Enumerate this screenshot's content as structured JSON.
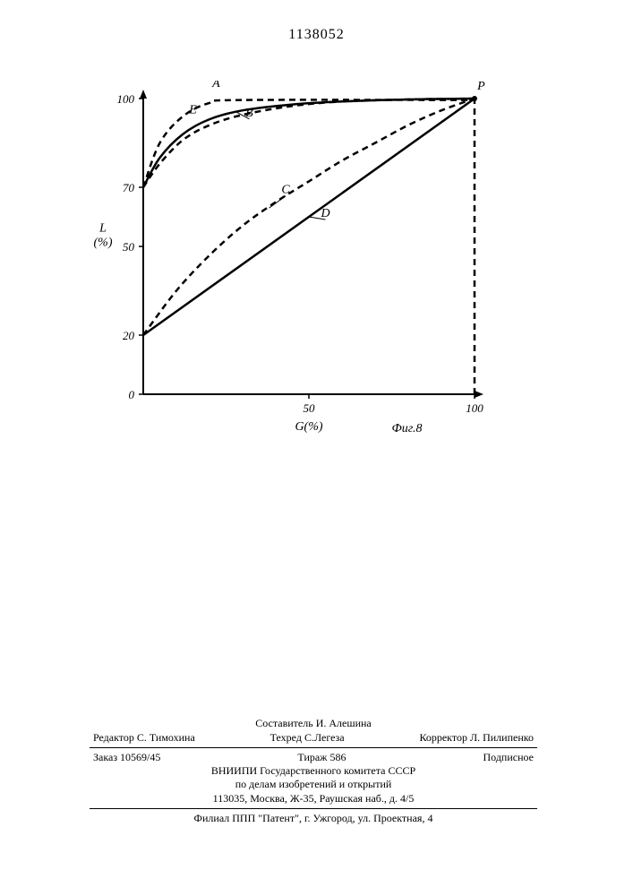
{
  "doc_number": "1138052",
  "chart": {
    "type": "line",
    "title": "",
    "figure_label": "Фиг.8",
    "xlabel": "G(%)",
    "ylabel_top": "L",
    "ylabel_bottom": "(%)",
    "xlim": [
      0,
      100
    ],
    "ylim": [
      0,
      100
    ],
    "y_ticks": [
      0,
      20,
      50,
      70,
      100
    ],
    "x_ticks": [
      50,
      100
    ],
    "background_color": "#ffffff",
    "axis_color": "#000000",
    "axis_width": 2,
    "line_width": 2.5,
    "dash_pattern": "7,5",
    "font_size_labels": 14,
    "font_size_ticks": 13,
    "font_style": "italic",
    "curves": {
      "A": {
        "label": "A",
        "dashed": true,
        "points": [
          [
            0,
            70
          ],
          [
            5,
            85
          ],
          [
            12,
            94
          ],
          [
            20,
            98.5
          ],
          [
            30,
            99.5
          ],
          [
            100,
            99.5
          ]
        ]
      },
      "E": {
        "label": "E",
        "dashed": true,
        "points": [
          [
            0,
            70
          ],
          [
            5,
            78
          ],
          [
            12,
            86
          ],
          [
            20,
            91
          ],
          [
            30,
            94.5
          ],
          [
            45,
            97.5
          ],
          [
            60,
            99
          ],
          [
            80,
            99.7
          ],
          [
            100,
            100
          ]
        ]
      },
      "B": {
        "label": "B",
        "dashed": false,
        "points": [
          [
            0,
            70
          ],
          [
            5,
            80
          ],
          [
            12,
            88
          ],
          [
            20,
            93
          ],
          [
            30,
            96
          ],
          [
            45,
            98
          ],
          [
            60,
            99
          ],
          [
            80,
            99.7
          ],
          [
            100,
            100
          ]
        ]
      },
      "C": {
        "label": "C",
        "dashed": true,
        "points": [
          [
            0,
            20
          ],
          [
            10,
            35
          ],
          [
            20,
            47
          ],
          [
            30,
            57
          ],
          [
            40,
            65
          ],
          [
            50,
            72
          ],
          [
            60,
            79
          ],
          [
            70,
            85
          ],
          [
            80,
            91
          ],
          [
            90,
            96
          ],
          [
            100,
            100
          ]
        ]
      },
      "D": {
        "label": "D",
        "dashed": false,
        "points": [
          [
            0,
            20
          ],
          [
            100,
            100
          ]
        ]
      },
      "P_drop": {
        "label": "",
        "dashed": true,
        "points": [
          [
            100,
            0
          ],
          [
            100,
            100
          ]
        ]
      }
    },
    "point_label_P": "P",
    "curve_label_positions": {
      "A": [
        22,
        104
      ],
      "E": [
        15,
        95
      ],
      "B": [
        32,
        94
      ],
      "C": [
        43,
        68
      ],
      "D": [
        55,
        60
      ],
      "P": [
        102,
        103
      ]
    }
  },
  "footer": {
    "compiler": "Составитель И. Алешина",
    "editor_label": "Редактор",
    "editor": "С. Тимохина",
    "techred_label": "Техред",
    "techred": "С.Легеза",
    "corrector_label": "Корректор",
    "corrector": "Л. Пилипенко",
    "order": "Заказ 10569/45",
    "tirazh": "Тираж 586",
    "podpisnoe": "Подписное",
    "org1": "ВНИИПИ Государственного комитета СССР",
    "org2": "по делам изобретений и открытий",
    "addr1": "113035, Москва, Ж-35, Раушская наб., д. 4/5",
    "branch": "Филиал ППП \"Патент\", г. Ужгород, ул. Проектная, 4"
  }
}
